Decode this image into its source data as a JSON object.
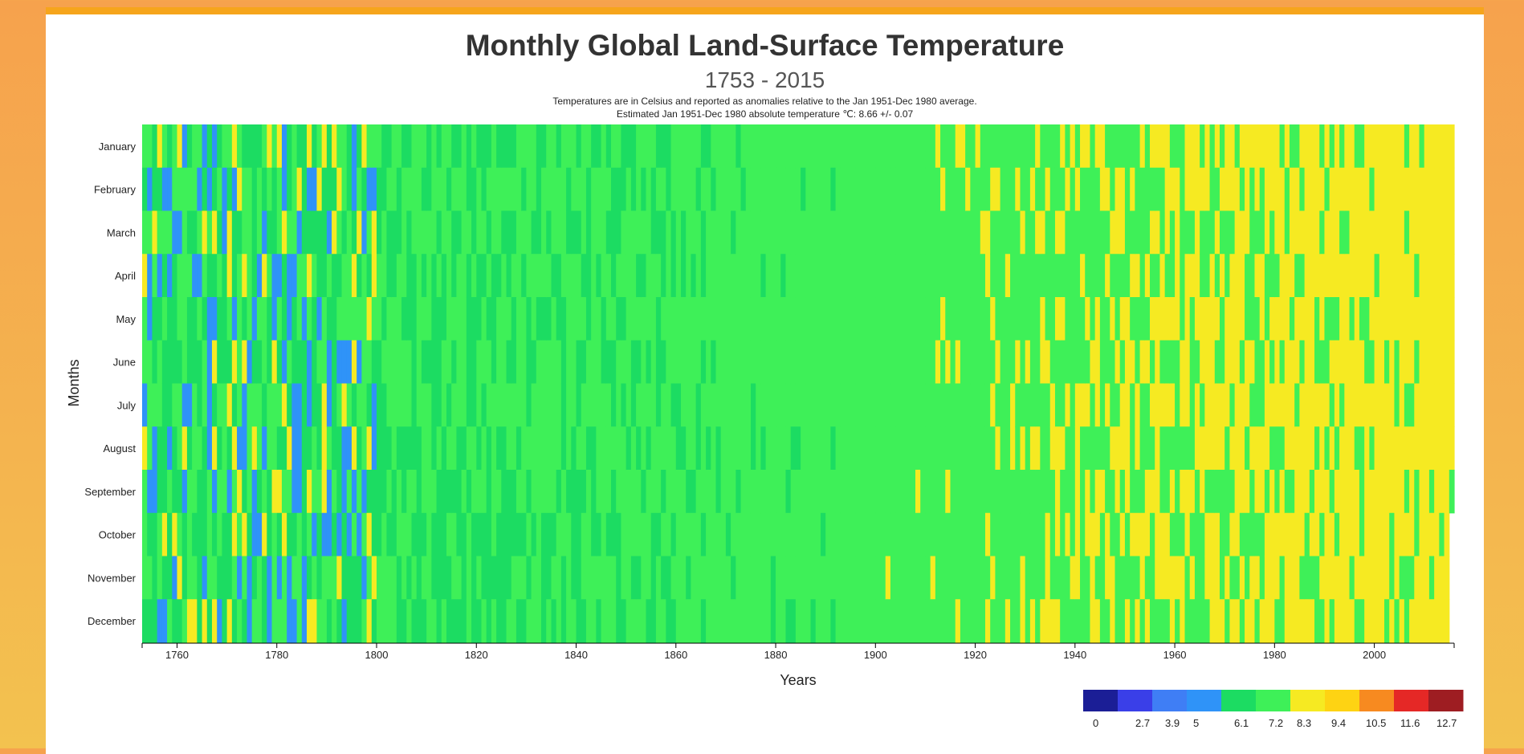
{
  "page": {
    "title": "Monthly Global Land-Surface Temperature",
    "subtitle": "1753 - 2015",
    "description_line1": "Temperatures are in Celsius and reported as anomalies relative to the Jan 1951-Dec 1980 average.",
    "description_line2": "Estimated Jan 1951-Dec 1980 absolute temperature ℃: 8.66 +/- 0.07"
  },
  "chart_data": {
    "type": "heatmap",
    "xlabel": "Years",
    "ylabel": "Months",
    "x_range": [
      1753,
      2015
    ],
    "x_ticks": [
      1760,
      1780,
      1800,
      1820,
      1840,
      1860,
      1880,
      1900,
      1920,
      1940,
      1960,
      1980,
      2000
    ],
    "months": [
      "January",
      "February",
      "March",
      "April",
      "May",
      "June",
      "July",
      "August",
      "September",
      "October",
      "November",
      "December"
    ],
    "base_temperature": 8.66,
    "color_scale": {
      "thresholds": [
        0,
        2.7,
        3.9,
        5,
        6.1,
        7.2,
        8.3,
        9.4,
        10.5,
        11.6,
        12.7
      ],
      "colors": [
        "#1b1e96",
        "#3a3fe8",
        "#3f7ef5",
        "#2f93f8",
        "#1cdc62",
        "#3ef058",
        "#f6ea22",
        "#fed313",
        "#f78a20",
        "#e52826",
        "#9e1d22"
      ]
    }
  }
}
